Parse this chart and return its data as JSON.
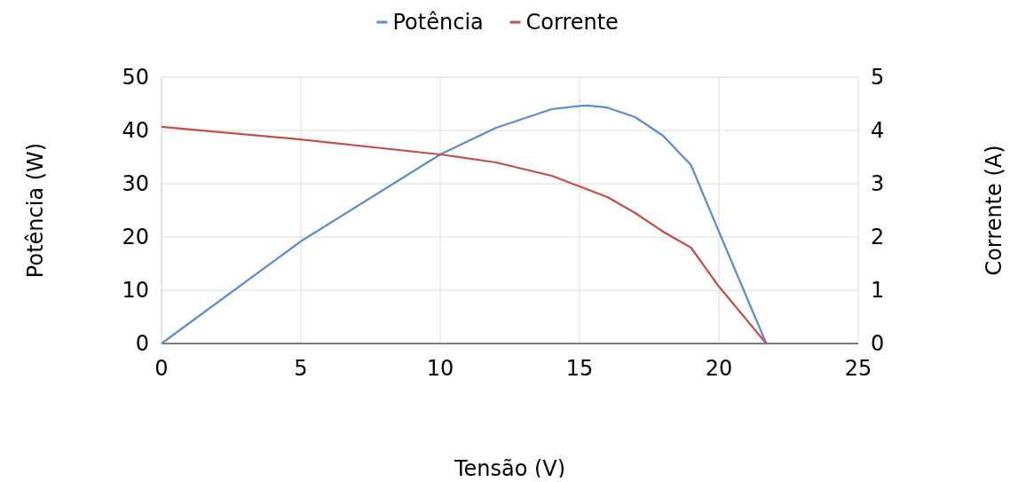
{
  "chart_data": {
    "type": "line",
    "xlabel": "Tensão (V)",
    "ylabel": "Potência (W)",
    "y2label": "Corrente (A)",
    "xlim": [
      0,
      25
    ],
    "xticks": [
      0,
      5,
      10,
      15,
      20,
      25
    ],
    "ylim": [
      0,
      50
    ],
    "yticks": [
      0,
      10,
      20,
      30,
      40,
      50
    ],
    "y2lim": [
      0,
      5
    ],
    "y2ticks": [
      0,
      1,
      2,
      3,
      4,
      5
    ],
    "grid": true,
    "legend": "top",
    "marker": "none",
    "line_style": "solid",
    "series": [
      {
        "name": "Potência",
        "color": "#5b8cc8",
        "x": [
          0,
          5,
          10,
          12,
          14,
          15,
          15.3,
          16,
          17,
          18,
          19,
          20,
          21.7
        ],
        "values": [
          0,
          19.2,
          35.5,
          40.5,
          44,
          44.6,
          44.7,
          44.3,
          42.5,
          39,
          33.5,
          21,
          0
        ]
      },
      {
        "name": "Corrente",
        "color": "#c0504d",
        "axis": "y2",
        "x": [
          0,
          5,
          10,
          12,
          14,
          15,
          16,
          17,
          18,
          19,
          20,
          21.7
        ],
        "values": [
          4.07,
          3.83,
          3.55,
          3.4,
          3.15,
          2.95,
          2.75,
          2.45,
          2.1,
          1.8,
          1.07,
          0
        ]
      }
    ]
  }
}
